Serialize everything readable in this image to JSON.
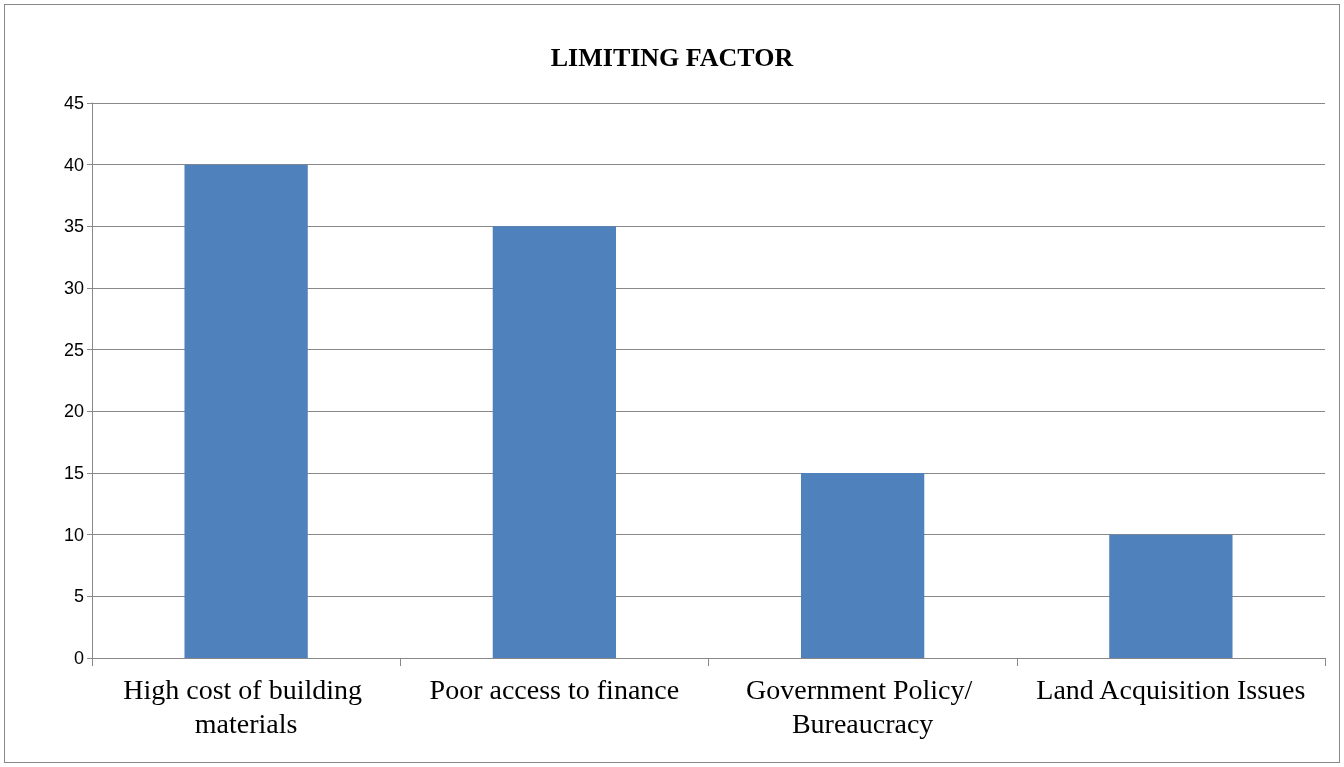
{
  "chart_data": {
    "type": "bar",
    "title": "LIMITING FACTOR",
    "categories": [
      "High cost of building materials",
      "Poor access to finance",
      "Government Policy/ Bureaucracy",
      "Land Acquisition Issues"
    ],
    "values": [
      40,
      35,
      15,
      10
    ],
    "color": "#4f81bd",
    "ylim": [
      0,
      45
    ],
    "yticks": [
      0,
      5,
      10,
      15,
      20,
      25,
      30,
      35,
      40,
      45
    ],
    "grid": "y"
  }
}
